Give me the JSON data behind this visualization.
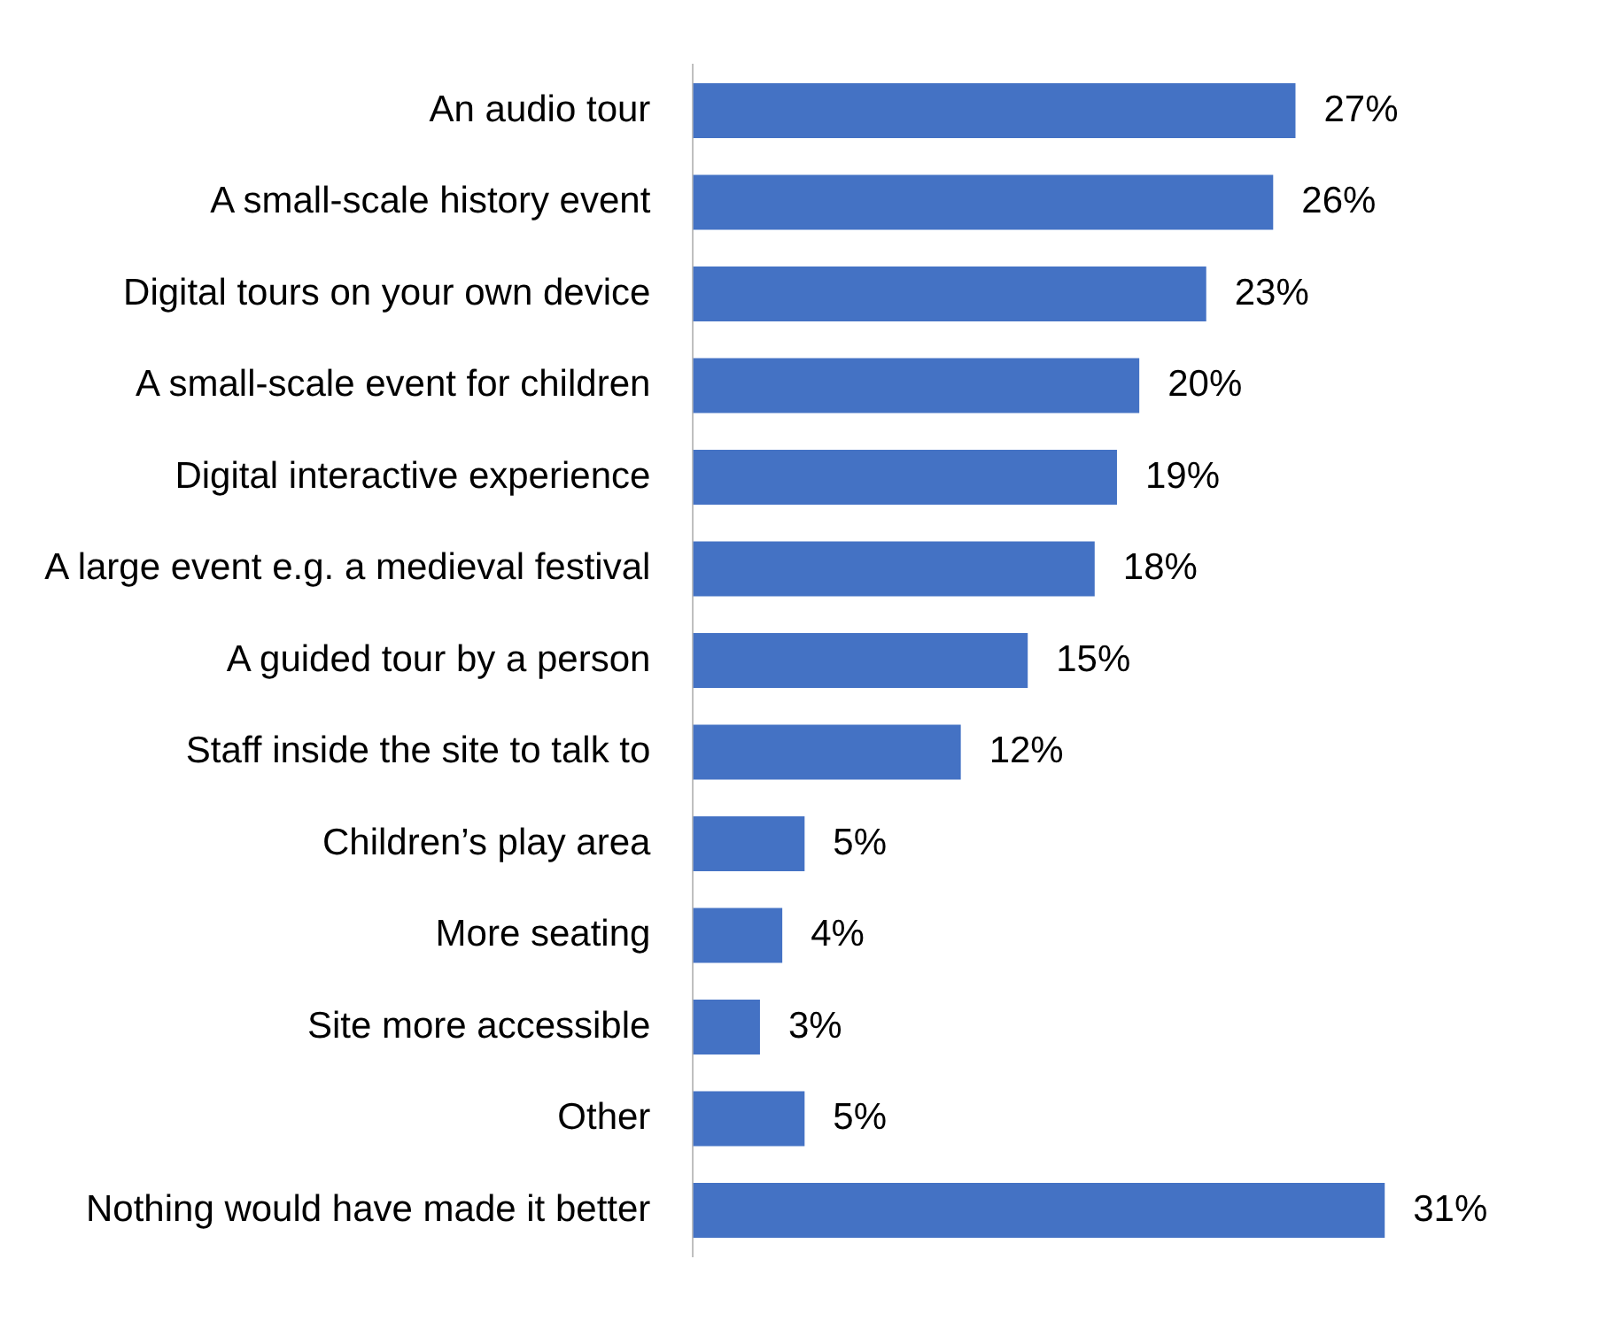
{
  "chart_data": {
    "type": "bar",
    "orientation": "horizontal",
    "categories": [
      "An audio tour",
      "A small-scale history event",
      "Digital tours on your own device",
      "A small-scale event for children",
      "Digital interactive experience",
      "A large event e.g. a medieval festival",
      "A guided tour by a person",
      "Staff inside the site to talk to",
      "Children’s play area",
      "More seating",
      "Site more accessible",
      "Other",
      "Nothing would have made it better"
    ],
    "values": [
      27,
      26,
      23,
      20,
      19,
      18,
      15,
      12,
      5,
      4,
      3,
      5,
      31
    ],
    "value_labels": [
      "27%",
      "26%",
      "23%",
      "20%",
      "19%",
      "18%",
      "15%",
      "12%",
      "5%",
      "4%",
      "3%",
      "5%",
      "31%"
    ],
    "color": "#4472c4"
  }
}
